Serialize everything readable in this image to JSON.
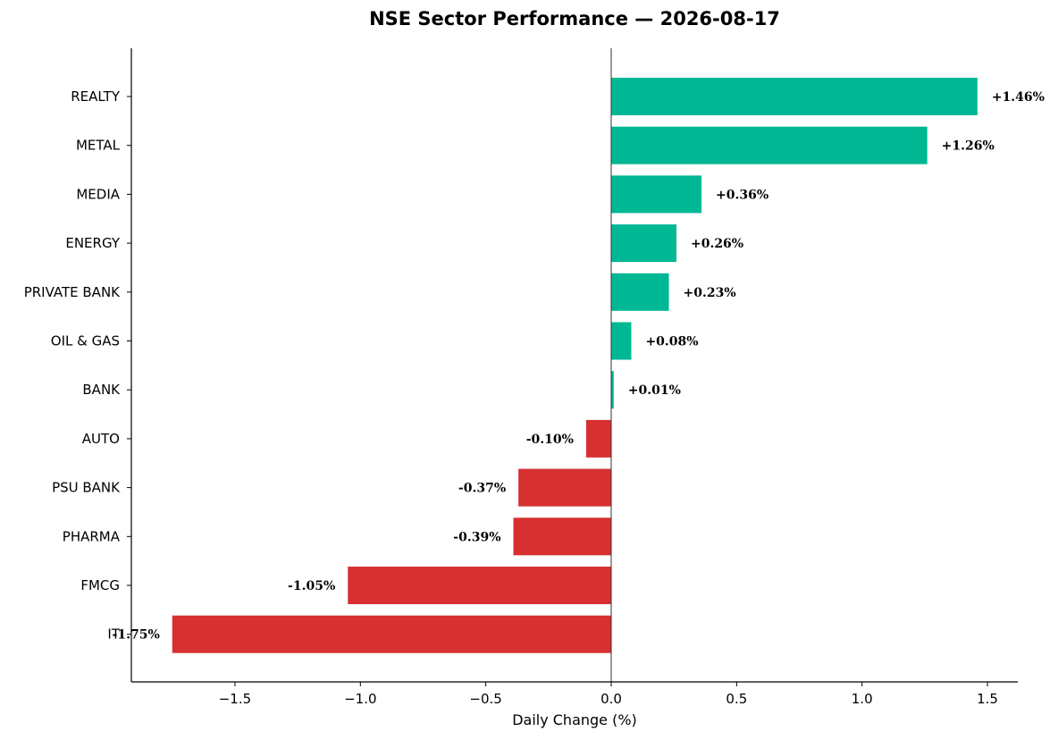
{
  "chart_data": {
    "type": "bar",
    "orientation": "horizontal",
    "title": "NSE Sector Performance — 2026-08-17",
    "xlabel": "Daily Change (%)",
    "ylabel": "",
    "xlim": [
      -1.9,
      1.62
    ],
    "xticks": [
      -1.5,
      -1.0,
      -0.5,
      0.0,
      0.5,
      1.0,
      1.5
    ],
    "xtick_labels": [
      "−1.5",
      "−1.0",
      "−0.5",
      "0.0",
      "0.5",
      "1.0",
      "1.5"
    ],
    "categories": [
      "REALTY",
      "METAL",
      "MEDIA",
      "ENERGY",
      "PRIVATE BANK",
      "OIL & GAS",
      "BANK",
      "AUTO",
      "PSU BANK",
      "PHARMA",
      "FMCG",
      "IT"
    ],
    "values": [
      1.46,
      1.26,
      0.36,
      0.26,
      0.23,
      0.08,
      0.01,
      -0.1,
      -0.37,
      -0.39,
      -1.05,
      -1.75
    ],
    "data_labels": [
      "+1.46%",
      "+1.26%",
      "+0.36%",
      "+0.26%",
      "+0.23%",
      "+0.08%",
      "+0.01%",
      "-0.10%",
      "-0.37%",
      "-0.39%",
      "-1.05%",
      "-1.75%"
    ],
    "colors": {
      "positive": "#00b894",
      "negative": "#d63031",
      "zero_line": "#333333",
      "axis": "#000000"
    },
    "grid": false,
    "legend": "none"
  }
}
